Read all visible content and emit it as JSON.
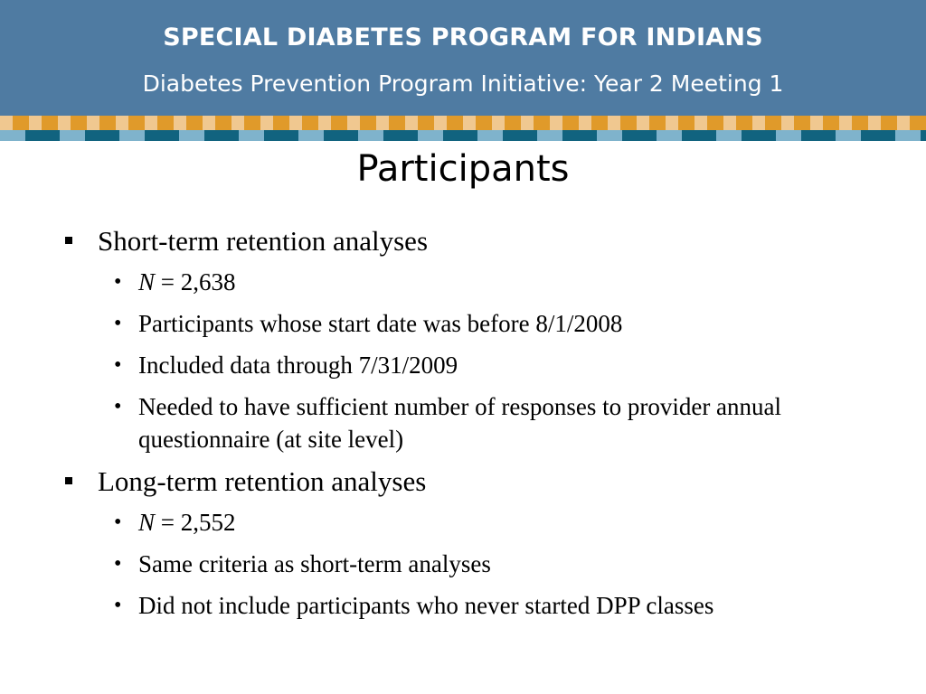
{
  "header": {
    "title": "SPECIAL DIABETES PROGRAM FOR INDIANS",
    "subtitle": "Diabetes Prevention Program Initiative:  Year 2 Meeting 1"
  },
  "slide": {
    "title": "Participants",
    "sections": [
      {
        "heading": "Short-term retention analyses",
        "n_label": "N",
        "n_value": " = 2,638",
        "items": [
          "Participants whose start date was before 8/1/2008",
          "Included data through 7/31/2009",
          "Needed to have sufficient number of responses to provider annual questionnaire (at site level)"
        ]
      },
      {
        "heading": "Long-term retention analyses",
        "n_label": "N",
        "n_value": " = 2,552",
        "items": [
          "Same criteria as short-term analyses",
          "Did not include participants who never started DPP classes"
        ]
      }
    ]
  },
  "colors": {
    "header_bg": "#4f7ba2",
    "stripe_light_orange": "#f0c890",
    "stripe_orange": "#e09a2a",
    "stripe_light_blue": "#7fb3cc",
    "stripe_dark_teal": "#11637f"
  }
}
